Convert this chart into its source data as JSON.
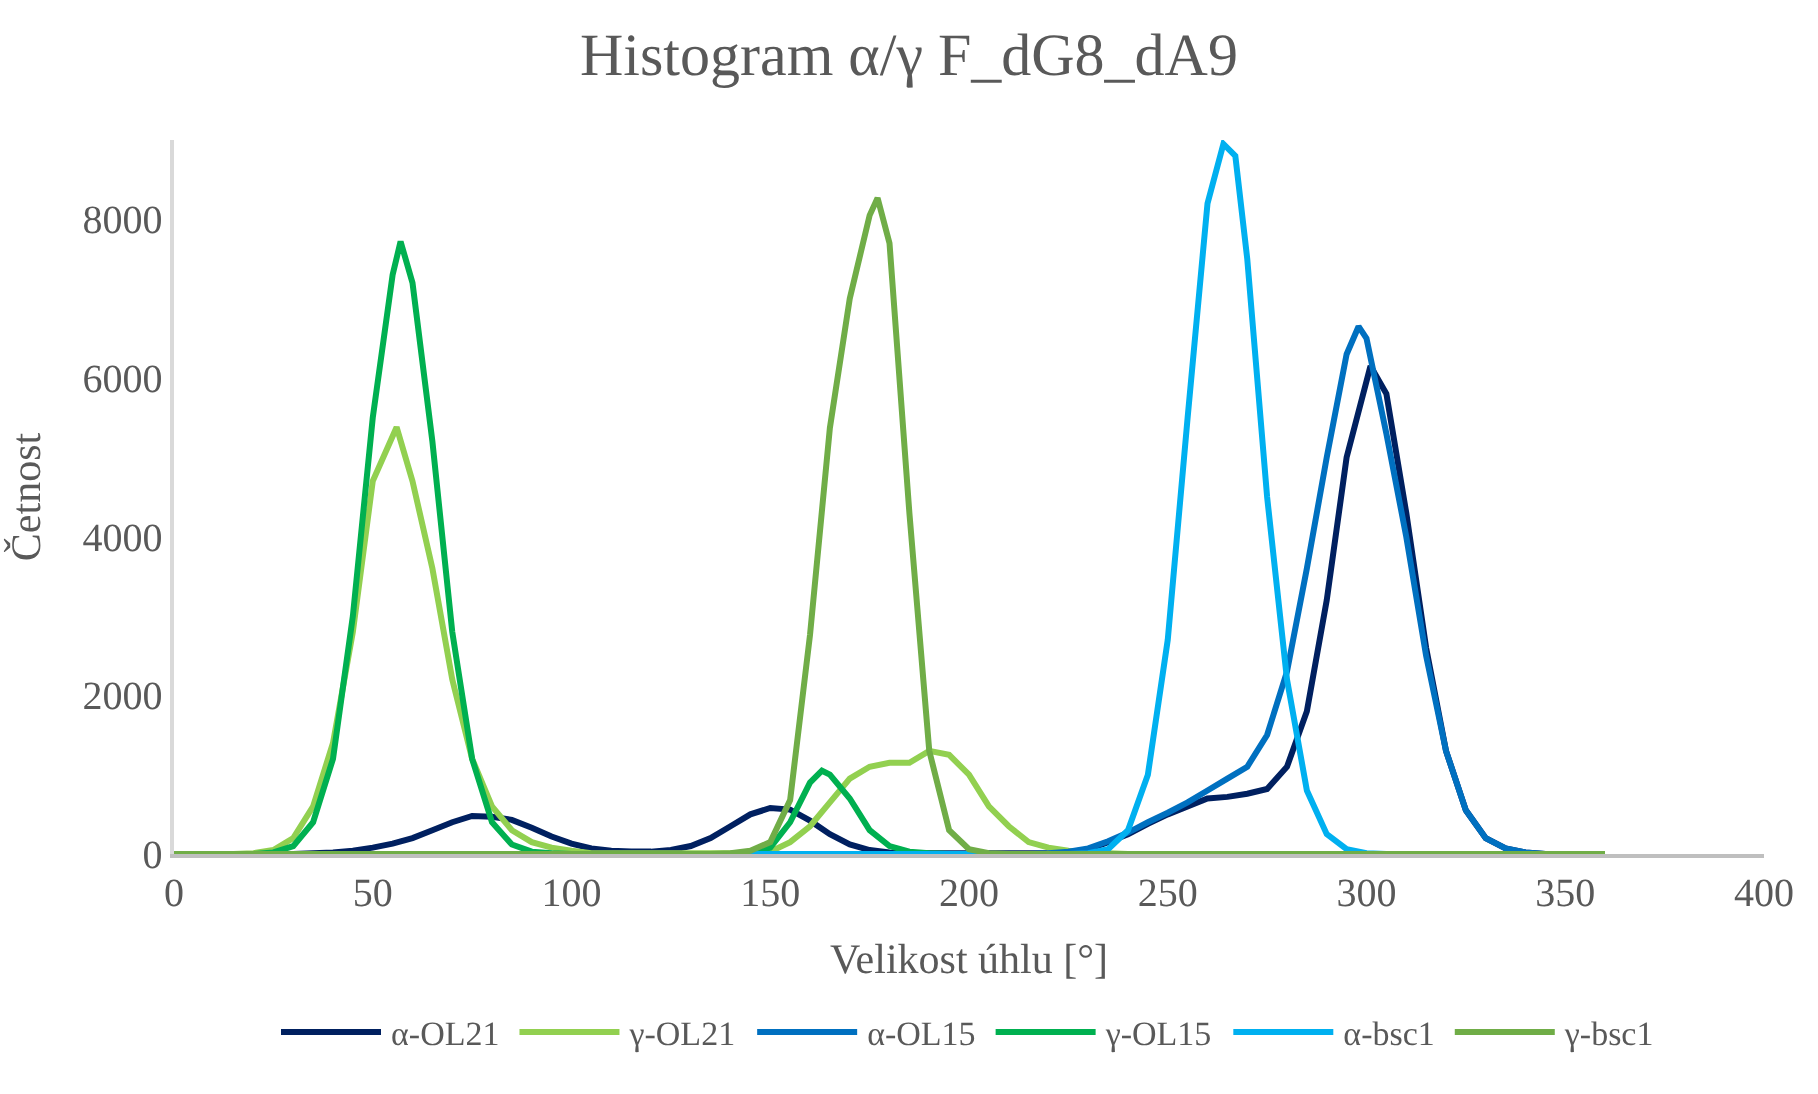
{
  "chart_data": {
    "type": "line",
    "title": "Histogram α/γ F_dG8_dA9",
    "xlabel": "Velikost úhlu [°]",
    "ylabel": "Četnost",
    "xlim": [
      0,
      400
    ],
    "xticks": [
      0,
      50,
      100,
      150,
      200,
      250,
      300,
      350,
      400
    ],
    "ylim": [
      0,
      9000
    ],
    "yticks": [
      0,
      2000,
      4000,
      6000,
      8000
    ],
    "grid": false,
    "legend": "bottom",
    "marker": "none",
    "line_style": "solid",
    "series": [
      {
        "name": "α-OL21",
        "color": "#002060",
        "x": [
          0,
          30,
          35,
          40,
          45,
          50,
          55,
          60,
          65,
          70,
          75,
          80,
          85,
          90,
          95,
          100,
          105,
          110,
          115,
          120,
          125,
          130,
          135,
          140,
          145,
          150,
          155,
          160,
          165,
          170,
          175,
          180,
          185,
          220,
          225,
          230,
          235,
          240,
          245,
          250,
          255,
          260,
          265,
          270,
          275,
          280,
          285,
          290,
          295,
          301,
          305,
          310,
          315,
          320,
          325,
          330,
          335,
          340,
          345,
          360
        ],
        "values": [
          0,
          0,
          10,
          20,
          40,
          80,
          130,
          200,
          300,
          400,
          480,
          470,
          430,
          330,
          220,
          130,
          70,
          40,
          30,
          30,
          50,
          100,
          200,
          350,
          500,
          580,
          560,
          420,
          250,
          120,
          50,
          20,
          10,
          10,
          20,
          60,
          150,
          250,
          380,
          500,
          600,
          700,
          720,
          760,
          820,
          1100,
          1800,
          3200,
          5000,
          6150,
          5800,
          4300,
          2600,
          1300,
          550,
          200,
          70,
          20,
          0,
          0
        ]
      },
      {
        "name": "γ-OL21",
        "color": "#92d050",
        "x": [
          0,
          15,
          20,
          25,
          30,
          35,
          40,
          45,
          50,
          56,
          60,
          65,
          70,
          75,
          80,
          85,
          90,
          95,
          100,
          105,
          145,
          150,
          155,
          160,
          165,
          170,
          175,
          180,
          185,
          190,
          195,
          200,
          205,
          210,
          215,
          220,
          225,
          230,
          235,
          240,
          360
        ],
        "values": [
          0,
          0,
          10,
          50,
          200,
          600,
          1400,
          2800,
          4700,
          5380,
          4700,
          3600,
          2200,
          1200,
          600,
          300,
          150,
          80,
          40,
          10,
          10,
          30,
          150,
          350,
          650,
          950,
          1100,
          1150,
          1150,
          1300,
          1250,
          1000,
          600,
          350,
          150,
          80,
          40,
          20,
          10,
          0,
          0
        ]
      },
      {
        "name": "α-OL15",
        "color": "#0070c0",
        "x": [
          0,
          215,
          220,
          225,
          230,
          235,
          240,
          245,
          250,
          255,
          260,
          265,
          270,
          275,
          280,
          285,
          290,
          295,
          298,
          300,
          305,
          310,
          315,
          320,
          325,
          330,
          335,
          340,
          345,
          360
        ],
        "values": [
          0,
          0,
          10,
          30,
          70,
          160,
          270,
          400,
          520,
          650,
          800,
          950,
          1100,
          1500,
          2300,
          3600,
          5000,
          6300,
          6650,
          6500,
          5300,
          4000,
          2500,
          1300,
          550,
          200,
          70,
          20,
          0,
          0
        ]
      },
      {
        "name": "γ-OL15",
        "color": "#00b050",
        "x": [
          0,
          20,
          25,
          30,
          35,
          40,
          45,
          50,
          55,
          57,
          60,
          65,
          70,
          75,
          80,
          85,
          90,
          95,
          100,
          140,
          145,
          150,
          155,
          160,
          163,
          165,
          170,
          175,
          180,
          185,
          190,
          195,
          360
        ],
        "values": [
          0,
          0,
          20,
          100,
          400,
          1200,
          3000,
          5500,
          7300,
          7720,
          7200,
          5200,
          2800,
          1200,
          400,
          120,
          30,
          10,
          0,
          0,
          10,
          80,
          400,
          900,
          1050,
          1000,
          700,
          300,
          100,
          30,
          10,
          0,
          0
        ]
      },
      {
        "name": "α-bsc1",
        "color": "#00b0f0",
        "x": [
          0,
          225,
          230,
          235,
          240,
          245,
          250,
          255,
          260,
          264,
          267,
          270,
          275,
          280,
          285,
          290,
          295,
          300,
          305,
          360
        ],
        "values": [
          0,
          0,
          10,
          60,
          300,
          1000,
          2700,
          5500,
          8200,
          8950,
          8800,
          7500,
          4500,
          2200,
          800,
          250,
          60,
          10,
          0,
          0
        ]
      },
      {
        "name": "γ-bsc1",
        "color": "#70ad47",
        "x": [
          0,
          135,
          140,
          145,
          150,
          155,
          160,
          165,
          170,
          175,
          177,
          180,
          185,
          190,
          195,
          200,
          205,
          210,
          360
        ],
        "values": [
          0,
          0,
          10,
          40,
          150,
          680,
          2760,
          5370,
          7000,
          8050,
          8270,
          7700,
          4300,
          1300,
          300,
          60,
          10,
          0,
          0
        ]
      }
    ]
  }
}
